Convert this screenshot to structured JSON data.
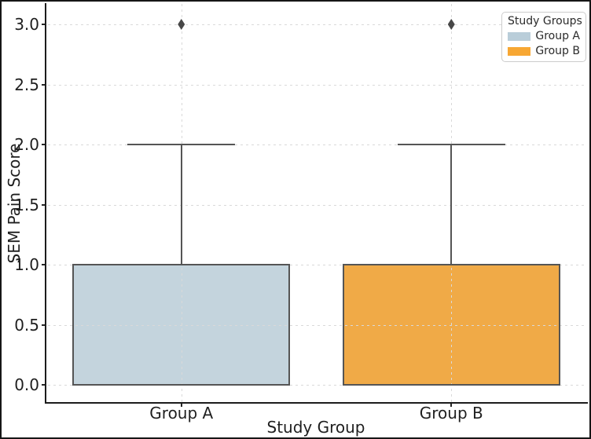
{
  "figure": {
    "background": "#ffffff",
    "border_color": "#161616",
    "text_color": "#1f1f1f"
  },
  "chart_data": {
    "type": "box",
    "title": "",
    "xlabel": "Study Group",
    "ylabel": "SEM Pain Score",
    "categories": [
      "Group A",
      "Group B"
    ],
    "groups": [
      {
        "name": "Group A",
        "box_color": "#c4d4dd",
        "legend_color": "#b9cdd9",
        "whisker_low": 0.0,
        "q1": 0.0,
        "median": 1.0,
        "q3": 1.0,
        "whisker_high": 2.0,
        "outliers": [
          3.0
        ]
      },
      {
        "name": "Group B",
        "box_color": "#f0aa47",
        "legend_color": "#f7a733",
        "whisker_low": 0.0,
        "q1": 0.0,
        "median": 1.0,
        "q3": 1.0,
        "whisker_high": 2.0,
        "outliers": [
          3.0
        ]
      }
    ],
    "ytick_labels": [
      "0.0",
      "0.5",
      "1.0",
      "1.5",
      "2.0",
      "2.5",
      "3.0"
    ],
    "ytick_values": [
      0,
      0.5,
      1,
      1.5,
      2,
      2.5,
      3
    ],
    "ylim": [
      -0.14,
      3.17
    ],
    "grid": {
      "style": "dashed",
      "color": "#d9d9d9",
      "axes": "both",
      "on_top": true
    },
    "element_line_color": "#555555",
    "outlier_marker": "thin-diamond",
    "legend": {
      "title": "Study Groups",
      "position": "upper-right"
    }
  }
}
